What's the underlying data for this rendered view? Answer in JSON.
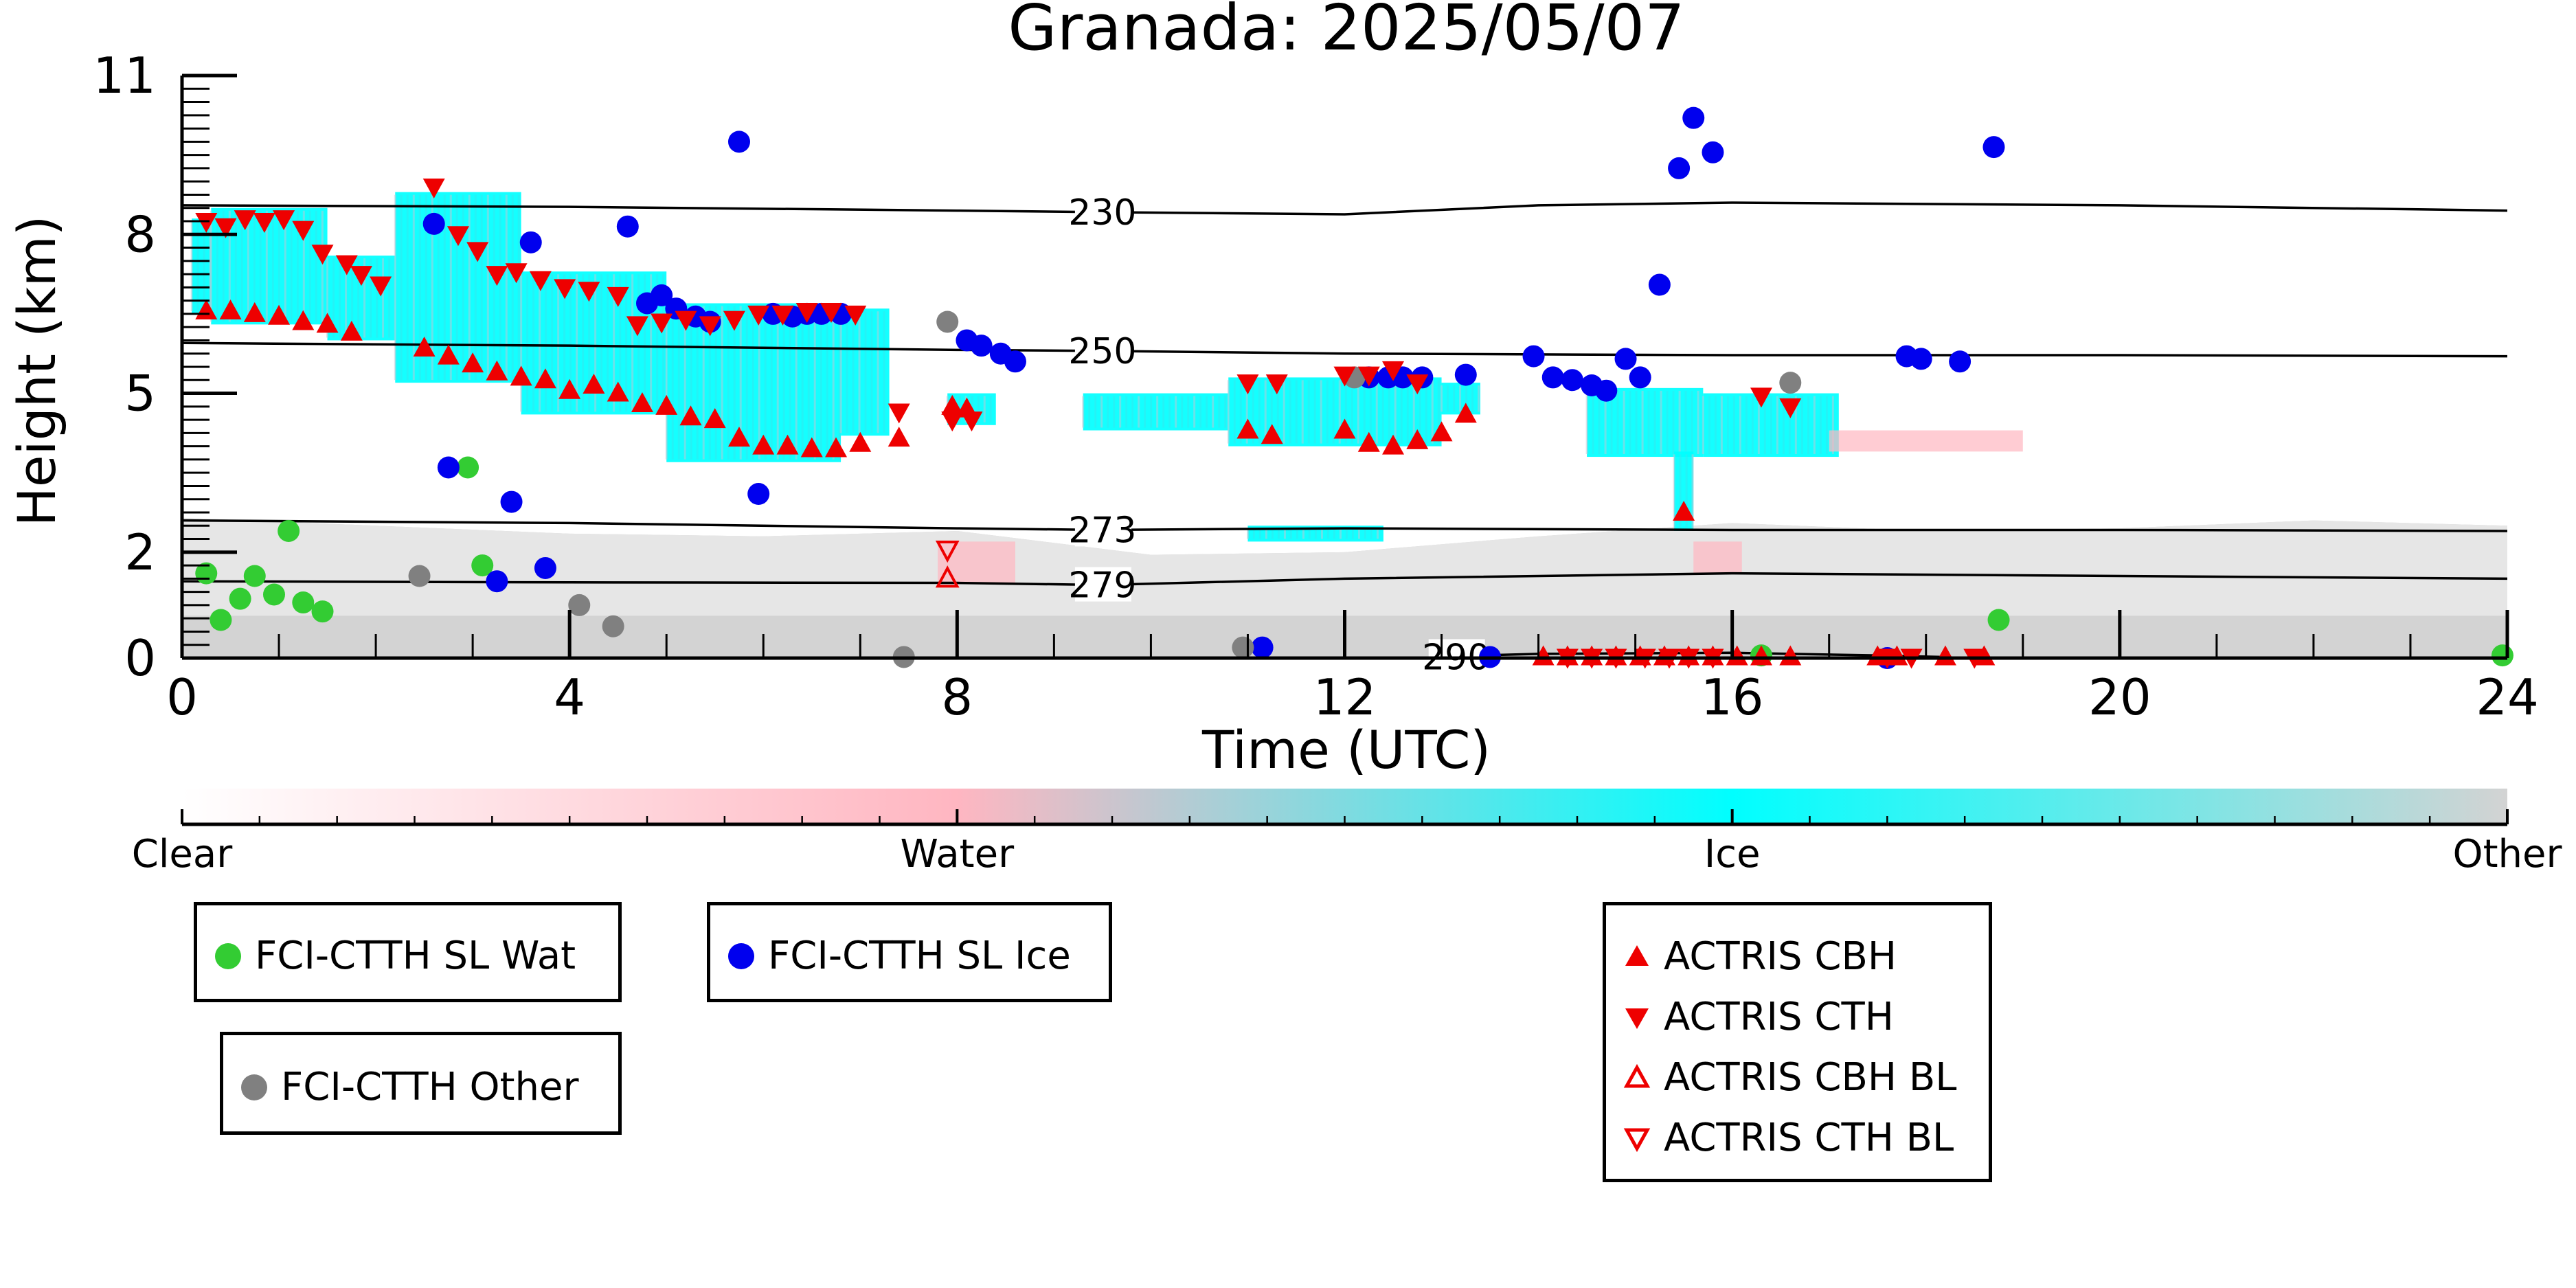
{
  "chart_data": {
    "type": "scatter",
    "title": "Granada: 2025/05/07",
    "xlabel": "Time (UTC)",
    "ylabel": "Height (km)",
    "xlim": [
      0,
      24
    ],
    "ylim": [
      0,
      11
    ],
    "x_ticks": [
      0,
      4,
      8,
      12,
      16,
      20,
      24
    ],
    "y_ticks": [
      0,
      2,
      5,
      8,
      11
    ],
    "colorbar": {
      "labels": [
        "Clear",
        "Water",
        "Ice",
        "Other"
      ],
      "colors": [
        "#ffffff",
        "#ffb6c1",
        "#00ffff",
        "#d3d3d3"
      ]
    },
    "isotherms": [
      {
        "label": "230",
        "x": [
          0,
          4,
          8,
          9.5,
          12,
          14,
          16,
          20,
          24
        ],
        "y": [
          8.55,
          8.52,
          8.45,
          8.42,
          8.38,
          8.55,
          8.6,
          8.55,
          8.45
        ]
      },
      {
        "label": "250",
        "x": [
          0,
          4,
          8,
          9.5,
          12,
          16,
          20,
          24
        ],
        "y": [
          5.95,
          5.9,
          5.82,
          5.8,
          5.75,
          5.72,
          5.72,
          5.7
        ]
      },
      {
        "label": "273",
        "x": [
          0,
          4,
          8,
          9.5,
          12,
          16,
          20,
          24
        ],
        "y": [
          2.6,
          2.55,
          2.45,
          2.42,
          2.45,
          2.42,
          2.42,
          2.4
        ]
      },
      {
        "label": "279",
        "x": [
          0,
          4,
          8,
          9.5,
          12,
          16,
          20,
          24
        ],
        "y": [
          1.45,
          1.43,
          1.42,
          1.38,
          1.5,
          1.6,
          1.55,
          1.5
        ]
      },
      {
        "label": "290",
        "x": [
          13.4,
          14,
          16,
          17.5,
          18.2
        ],
        "y": [
          0.05,
          0.08,
          0.1,
          0.05,
          0.02
        ]
      }
    ],
    "series": [
      {
        "name": "FCI-CTTH SL Wat",
        "marker": "circle",
        "color": "#33cc33",
        "x": [
          0.25,
          0.4,
          0.6,
          0.75,
          0.95,
          1.1,
          1.25,
          1.45,
          2.95,
          3.1,
          18.75,
          16.3,
          23.95
        ],
        "y": [
          1.6,
          0.72,
          1.12,
          1.55,
          1.2,
          2.4,
          1.05,
          0.88,
          3.6,
          1.75,
          0.72,
          0.05,
          0.05
        ]
      },
      {
        "name": "FCI-CTTH SL Ice",
        "marker": "circle",
        "color": "#0000ee",
        "x": [
          2.6,
          2.75,
          3.25,
          3.4,
          3.6,
          3.75,
          4.6,
          4.8,
          4.95,
          5.1,
          5.3,
          5.45,
          5.75,
          5.95,
          6.1,
          6.3,
          6.45,
          6.6,
          6.8,
          8.1,
          8.25,
          8.45,
          8.6,
          11.15,
          12.25,
          12.45,
          12.6,
          12.8,
          13.25,
          13.5,
          13.95,
          14.15,
          14.35,
          14.55,
          14.7,
          14.9,
          15.05,
          15.25,
          15.45,
          15.6,
          15.8,
          17.6,
          17.8,
          17.95,
          18.35,
          18.7
        ],
        "y": [
          8.2,
          3.6,
          1.45,
          2.95,
          7.85,
          1.7,
          8.15,
          6.7,
          6.85,
          6.6,
          6.45,
          6.35,
          9.75,
          3.1,
          6.5,
          6.45,
          6.5,
          6.5,
          6.5,
          6.0,
          5.9,
          5.75,
          5.6,
          0.2,
          5.3,
          5.3,
          5.3,
          5.3,
          5.35,
          0.02,
          5.7,
          5.3,
          5.25,
          5.15,
          5.05,
          5.65,
          5.3,
          7.05,
          9.25,
          10.2,
          9.55,
          0.0,
          5.7,
          5.65,
          5.6,
          9.65
        ]
      },
      {
        "name": "FCI-CTTH Other",
        "marker": "circle",
        "color": "#808080",
        "x": [
          2.45,
          4.1,
          4.45,
          7.45,
          7.9,
          10.95,
          12.1,
          16.6
        ],
        "y": [
          1.55,
          1.0,
          0.6,
          0.02,
          6.35,
          0.2,
          5.3,
          5.2
        ]
      },
      {
        "name": "ACTRIS CBH",
        "marker": "triangle-up",
        "color": "#ee0000",
        "x": [
          0.25,
          0.5,
          0.75,
          1.0,
          1.25,
          1.5,
          1.75,
          2.5,
          2.75,
          3.0,
          3.25,
          3.5,
          3.75,
          4.0,
          4.25,
          4.5,
          4.75,
          5.0,
          5.25,
          5.5,
          5.75,
          6.0,
          6.25,
          6.5,
          6.75,
          7.0,
          7.4,
          7.95,
          8.1,
          11.0,
          11.25,
          12.0,
          12.25,
          12.5,
          12.75,
          13.0,
          13.25,
          14.05,
          14.3,
          14.55,
          14.8,
          15.05,
          15.3,
          15.55,
          15.8,
          16.05,
          16.3,
          16.6,
          15.5,
          17.5,
          17.7,
          18.2,
          18.6
        ],
        "y": [
          6.55,
          6.55,
          6.5,
          6.45,
          6.35,
          6.3,
          6.15,
          5.85,
          5.7,
          5.55,
          5.4,
          5.3,
          5.25,
          5.05,
          5.15,
          5.0,
          4.8,
          4.75,
          4.55,
          4.5,
          4.15,
          4.0,
          4.0,
          3.95,
          3.95,
          4.05,
          4.15,
          4.75,
          4.7,
          4.3,
          4.2,
          4.3,
          4.05,
          4.0,
          4.1,
          4.25,
          4.6,
          0.02,
          0.02,
          0.02,
          0.02,
          0.02,
          0.02,
          0.02,
          0.02,
          0.02,
          0.02,
          0.02,
          2.75,
          0.02,
          0.02,
          0.02,
          0.02
        ],
        "y2": []
      },
      {
        "name": "ACTRIS CTH",
        "marker": "triangle-down",
        "color": "#ee0000",
        "x": [
          0.25,
          0.45,
          0.65,
          0.85,
          1.05,
          1.25,
          1.45,
          1.7,
          1.85,
          2.05,
          2.6,
          2.85,
          3.05,
          3.25,
          3.45,
          3.7,
          3.95,
          4.2,
          4.5,
          4.7,
          4.95,
          5.2,
          5.45,
          5.7,
          5.95,
          6.2,
          6.45,
          6.7,
          6.95,
          7.4,
          7.95,
          8.15,
          11.0,
          11.3,
          12.0,
          12.25,
          12.5,
          12.75,
          14.3,
          14.55,
          14.8,
          15.1,
          15.35,
          15.55,
          15.8,
          16.3,
          16.6,
          17.6,
          17.85,
          18.5
        ],
        "y": [
          8.25,
          8.15,
          8.3,
          8.25,
          8.3,
          8.1,
          7.65,
          7.45,
          7.25,
          7.05,
          8.9,
          8.0,
          7.7,
          7.25,
          7.3,
          7.15,
          7.0,
          6.95,
          6.85,
          6.3,
          6.35,
          6.4,
          6.3,
          6.4,
          6.5,
          6.5,
          6.55,
          6.55,
          6.5,
          4.65,
          4.5,
          4.5,
          5.2,
          5.2,
          5.35,
          5.35,
          5.45,
          5.2,
          0.02,
          0.02,
          0.02,
          0.02,
          0.02,
          0.02,
          0.02,
          4.95,
          4.75,
          0.02,
          0.02,
          0.02
        ],
        "y3": []
      },
      {
        "name": "ACTRIS CBH BL",
        "marker": "triangle-up-open",
        "color": "#ee0000",
        "x": [
          7.9
        ],
        "y": [
          1.5
        ]
      },
      {
        "name": "ACTRIS CTH BL",
        "marker": "triangle-down-open",
        "color": "#ee0000",
        "x": [
          7.9
        ],
        "y": [
          2.05
        ]
      }
    ],
    "cloud_regions": {
      "ice": [
        {
          "x0": 0.1,
          "x1": 0.3,
          "y0": 6.5,
          "y1": 8.3
        },
        {
          "x0": 0.3,
          "x1": 1.5,
          "y0": 6.3,
          "y1": 8.5
        },
        {
          "x0": 1.5,
          "x1": 2.2,
          "y0": 6.0,
          "y1": 7.6
        },
        {
          "x0": 2.2,
          "x1": 3.5,
          "y0": 5.2,
          "y1": 8.8
        },
        {
          "x0": 3.5,
          "x1": 5.0,
          "y0": 4.6,
          "y1": 7.3
        },
        {
          "x0": 5.0,
          "x1": 6.8,
          "y0": 3.7,
          "y1": 6.7
        },
        {
          "x0": 6.8,
          "x1": 7.3,
          "y0": 4.2,
          "y1": 6.6
        },
        {
          "x0": 7.9,
          "x1": 8.4,
          "y0": 4.4,
          "y1": 5.0
        },
        {
          "x0": 9.3,
          "x1": 10.8,
          "y0": 4.3,
          "y1": 5.0
        },
        {
          "x0": 10.8,
          "x1": 13.0,
          "y0": 4.0,
          "y1": 5.3
        },
        {
          "x0": 13.0,
          "x1": 13.4,
          "y0": 4.6,
          "y1": 5.2
        },
        {
          "x0": 14.5,
          "x1": 15.7,
          "y0": 3.8,
          "y1": 5.1
        },
        {
          "x0": 15.4,
          "x1": 15.6,
          "y0": 2.4,
          "y1": 3.9
        },
        {
          "x0": 15.7,
          "x1": 17.1,
          "y0": 3.8,
          "y1": 5.0
        },
        {
          "x0": 11.0,
          "x1": 12.4,
          "y0": 2.2,
          "y1": 2.5
        }
      ],
      "water": [
        {
          "x0": 7.8,
          "x1": 8.6,
          "y0": 1.4,
          "y1": 2.2
        },
        {
          "x0": 15.6,
          "x1": 16.1,
          "y0": 1.6,
          "y1": 2.2
        },
        {
          "x0": 17.0,
          "x1": 19.0,
          "y0": 3.9,
          "y1": 4.3
        }
      ],
      "other_low": {
        "x": [
          0,
          2,
          4,
          6,
          8,
          10,
          12,
          14,
          16,
          18,
          20,
          22,
          24
        ],
        "y": [
          2.65,
          2.5,
          2.35,
          2.3,
          2.4,
          1.95,
          2.0,
          2.3,
          2.55,
          2.4,
          2.45,
          2.6,
          2.5
        ]
      }
    }
  }
}
